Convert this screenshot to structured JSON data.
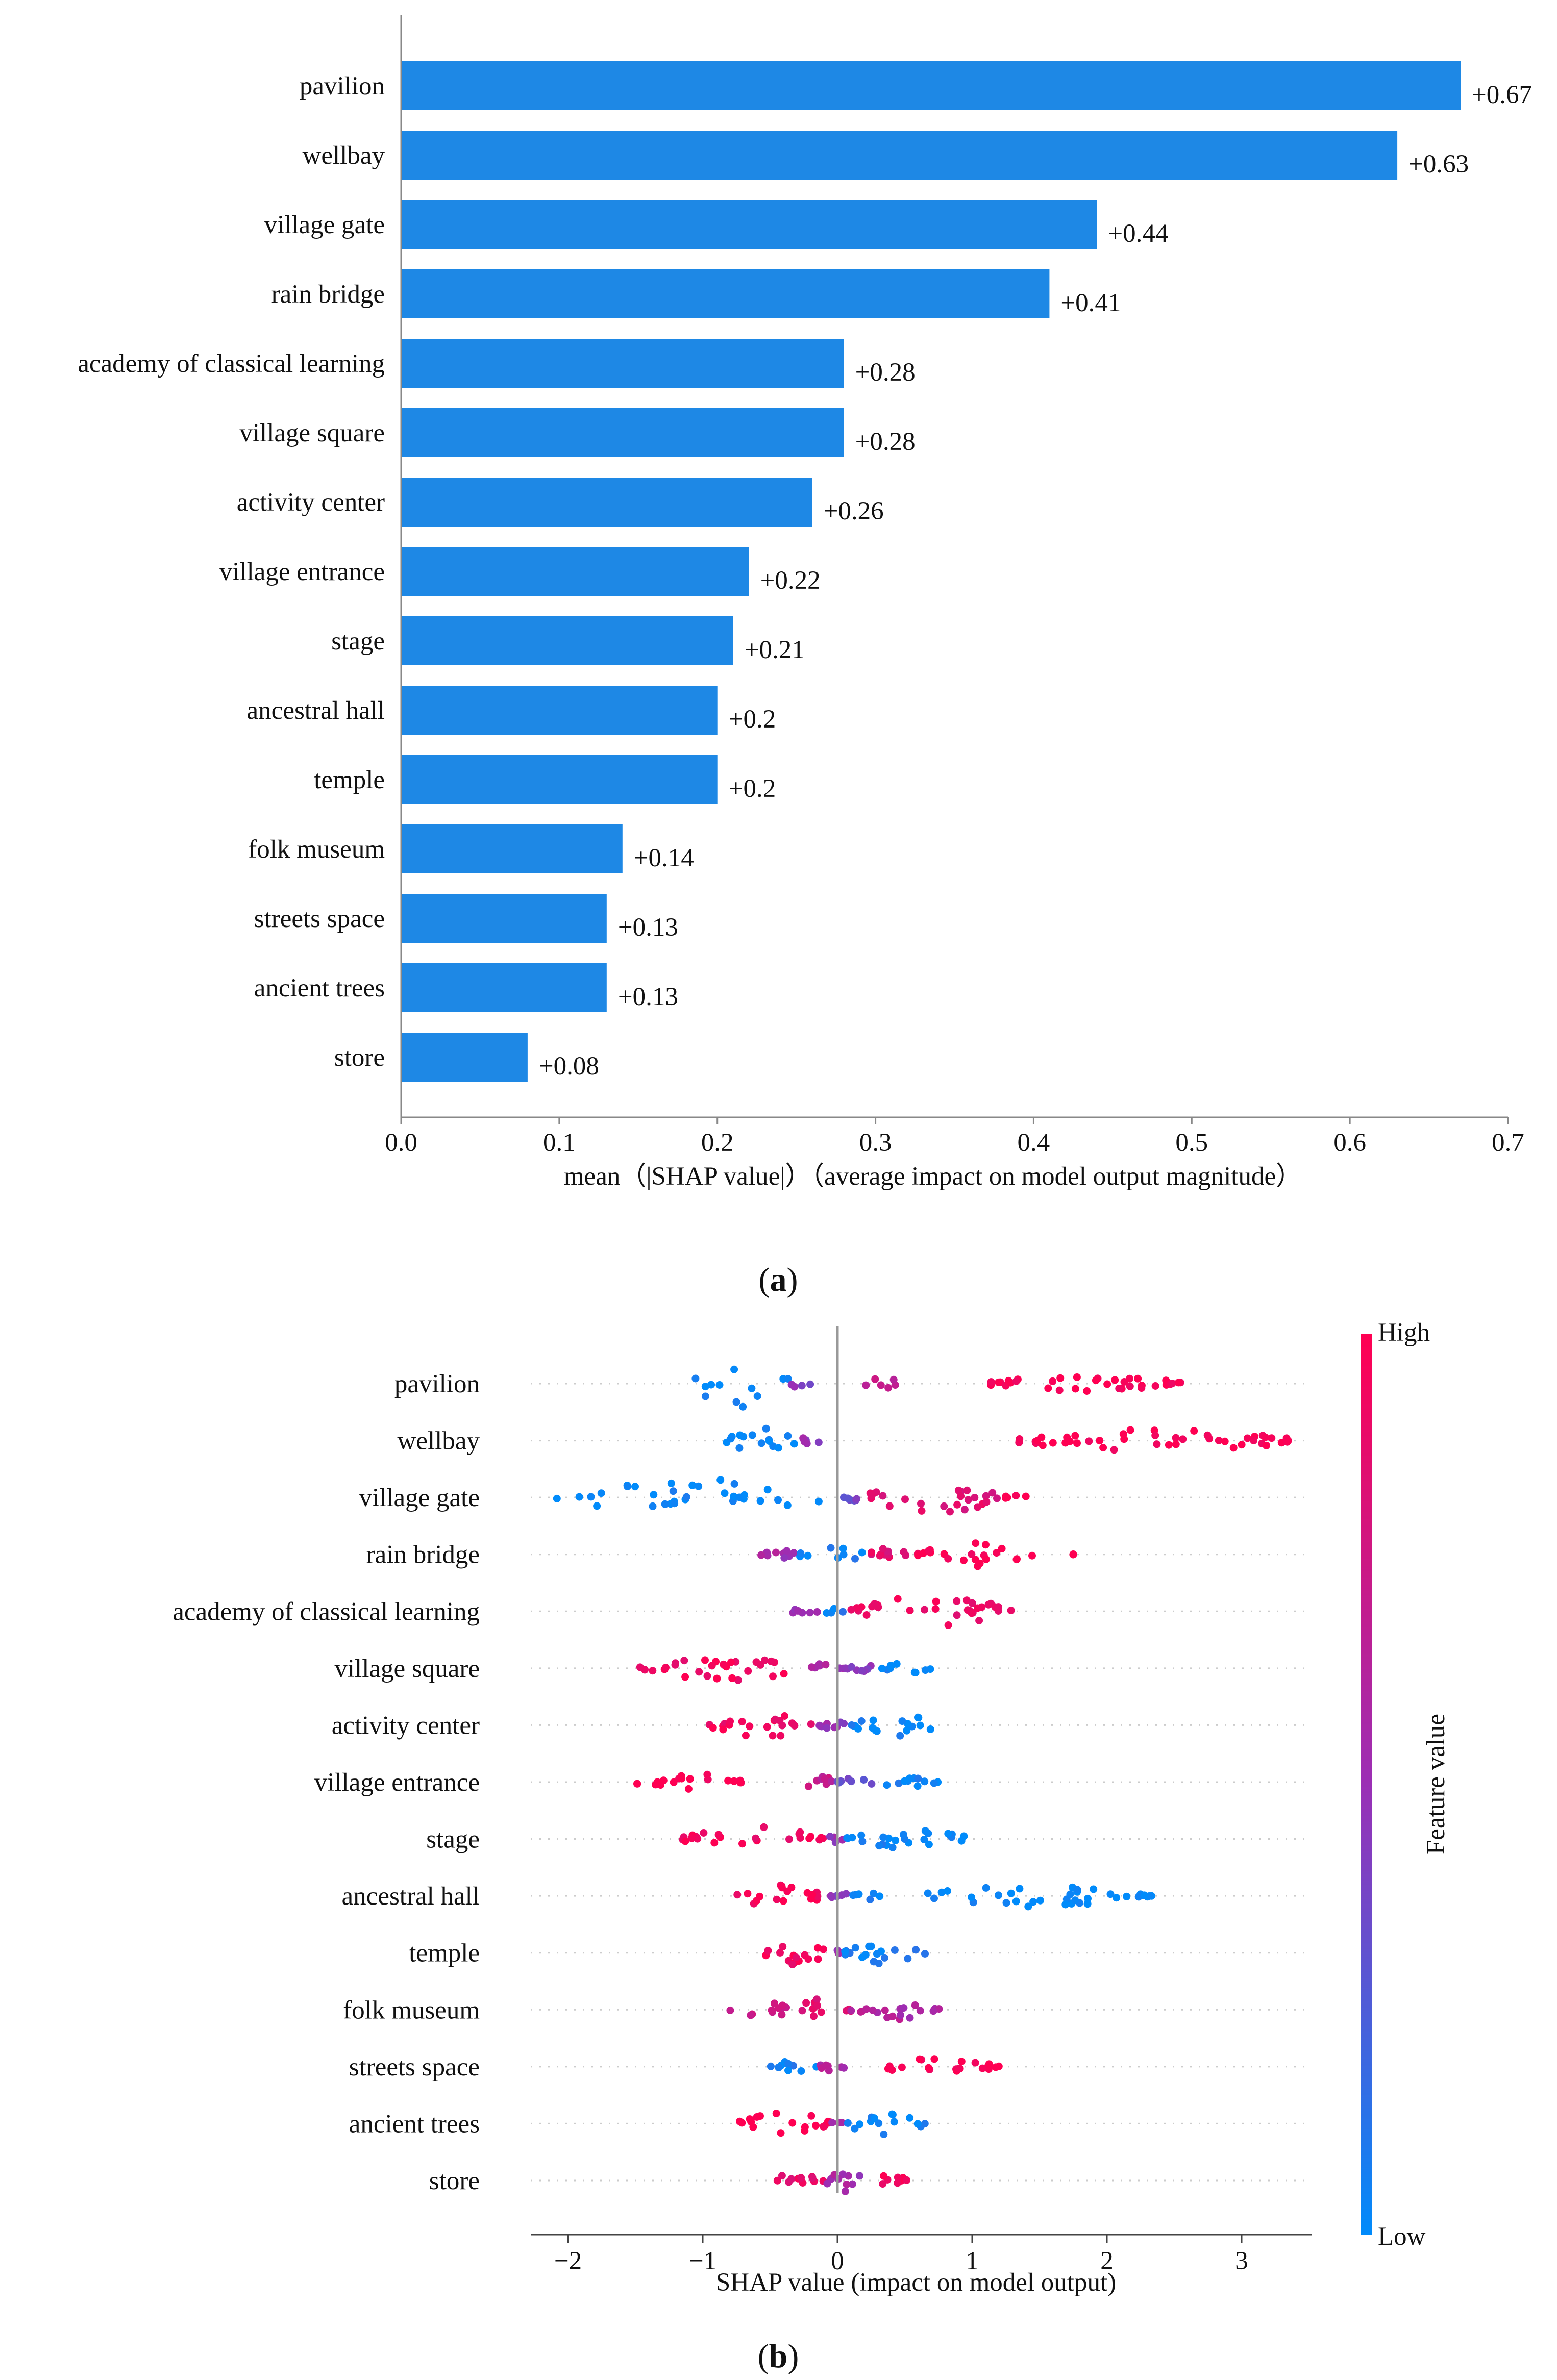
{
  "colors": {
    "bar": "#1e88e5",
    "low": "#008bfb",
    "mid": "#9b2fb5",
    "high": "#ff0052",
    "axis": "#888888",
    "text": "#111111"
  },
  "panel_a_label": "a",
  "panel_b_label": "b",
  "chart_data": [
    {
      "type": "bar",
      "orientation": "horizontal",
      "categories": [
        "pavilion",
        "wellbay",
        "village gate",
        "rain bridge",
        "academy of classical learning",
        "village square",
        "activity center",
        "village entrance",
        "stage",
        "ancestral hall",
        "temple",
        "folk museum",
        "streets space",
        "ancient trees",
        "store"
      ],
      "values": [
        0.67,
        0.63,
        0.44,
        0.41,
        0.28,
        0.28,
        0.26,
        0.22,
        0.21,
        0.2,
        0.2,
        0.14,
        0.13,
        0.13,
        0.08
      ],
      "value_labels": [
        "+0.67",
        "+0.63",
        "+0.44",
        "+0.41",
        "+0.28",
        "+0.28",
        "+0.26",
        "+0.22",
        "+0.21",
        "+0.2",
        "+0.2",
        "+0.14",
        "+0.13",
        "+0.13",
        "+0.08"
      ],
      "xlim": [
        0,
        0.7
      ],
      "xticks": [
        0.0,
        0.1,
        0.2,
        0.3,
        0.4,
        0.5,
        0.6,
        0.7
      ],
      "xtick_labels": [
        "0.0",
        "0.1",
        "0.2",
        "0.3",
        "0.4",
        "0.5",
        "0.6",
        "0.7"
      ],
      "xlabel": "mean（|SHAP value|）（average impact on model output magnitude）",
      "title": ""
    },
    {
      "type": "scatter",
      "subtype": "beeswarm",
      "categories": [
        "pavilion",
        "wellbay",
        "village gate",
        "rain bridge",
        "academy of classical learning",
        "village square",
        "activity center",
        "village entrance",
        "stage",
        "ancestral hall",
        "temple",
        "folk museum",
        "streets space",
        "ancient trees",
        "store"
      ],
      "xlim": [
        -2.4,
        3.75
      ],
      "xticks": [
        -2,
        -1,
        0,
        1,
        2,
        3
      ],
      "xtick_labels": [
        "−2",
        "−1",
        "0",
        "1",
        "2",
        "3"
      ],
      "xlabel": "SHAP value (impact on model output)",
      "colorbar": {
        "label": "Feature value",
        "high_label": "High",
        "low_label": "Low"
      },
      "clusters": [
        [
          [
            -1.1,
            -0.35,
            0.05,
            0.95,
            0.0
          ],
          [
            -0.35,
            -0.2,
            0.28,
            0.25,
            0.45
          ],
          [
            0.2,
            0.45,
            0.22,
            0.78,
            0.7
          ],
          [
            1.1,
            2.6,
            0.18,
            0.32,
            1.0
          ]
        ],
        [
          [
            -0.85,
            -0.3,
            0.25,
            0.55,
            0.0
          ],
          [
            -0.3,
            -0.12,
            0.3,
            0.2,
            0.5
          ],
          [
            1.2,
            3.45,
            0.14,
            0.45,
            1.0
          ]
        ],
        [
          [
            -2.1,
            -0.05,
            0.05,
            0.75,
            0.0
          ],
          [
            0.0,
            0.2,
            0.3,
            0.18,
            0.35
          ],
          [
            0.2,
            1.2,
            0.2,
            0.7,
            0.85
          ],
          [
            1.2,
            1.45,
            0.15,
            0.12,
            1.0
          ]
        ],
        [
          [
            -0.6,
            -0.3,
            0.3,
            0.2,
            0.55
          ],
          [
            -0.3,
            0.2,
            0.1,
            0.35,
            0.05
          ],
          [
            0.2,
            0.55,
            0.3,
            0.3,
            0.85
          ],
          [
            0.55,
            1.5,
            0.18,
            0.5,
            1.0
          ],
          [
            1.75,
            1.75,
            0.1,
            0.02,
            1.0
          ]
        ],
        [
          [
            -0.35,
            -0.15,
            0.3,
            0.2,
            0.5
          ],
          [
            -0.15,
            0.05,
            0.1,
            0.15,
            0.05
          ],
          [
            0.05,
            1.3,
            0.22,
            0.65,
            0.92
          ]
        ],
        [
          [
            -1.5,
            -0.25,
            0.18,
            0.55,
            0.95
          ],
          [
            -0.25,
            0.05,
            0.2,
            0.18,
            0.55
          ],
          [
            0.05,
            0.3,
            0.3,
            0.18,
            0.45
          ],
          [
            0.3,
            0.7,
            0.2,
            0.22,
            0.02
          ]
        ],
        [
          [
            -0.95,
            -0.15,
            0.22,
            0.5,
            0.95
          ],
          [
            -0.15,
            0.1,
            0.3,
            0.15,
            0.5
          ],
          [
            0.1,
            0.75,
            0.25,
            0.45,
            0.02
          ]
        ],
        [
          [
            -1.5,
            -0.7,
            0.18,
            0.35,
            1.0
          ],
          [
            -0.3,
            0.0,
            0.25,
            0.25,
            0.7
          ],
          [
            0.0,
            0.3,
            0.3,
            0.2,
            0.35
          ],
          [
            0.3,
            0.75,
            0.2,
            0.25,
            0.02
          ]
        ],
        [
          [
            -1.15,
            -0.1,
            0.18,
            0.5,
            0.95
          ],
          [
            -0.1,
            0.05,
            0.3,
            0.15,
            0.5
          ],
          [
            0.05,
            1.05,
            0.2,
            0.4,
            0.02
          ]
        ],
        [
          [
            -0.75,
            -0.1,
            0.25,
            0.5,
            0.98
          ],
          [
            -0.1,
            0.1,
            0.3,
            0.15,
            0.45
          ],
          [
            0.1,
            0.35,
            0.2,
            0.2,
            0.02
          ],
          [
            0.6,
            2.35,
            0.14,
            0.45,
            0.0
          ]
        ],
        [
          [
            -0.55,
            -0.05,
            0.3,
            0.5,
            0.95
          ],
          [
            -0.05,
            0.05,
            0.3,
            0.1,
            0.5
          ],
          [
            0.05,
            0.65,
            0.3,
            0.45,
            0.05
          ]
        ],
        [
          [
            -0.8,
            -0.3,
            0.15,
            0.3,
            0.7
          ],
          [
            -0.3,
            0.1,
            0.35,
            0.5,
            0.85
          ],
          [
            0.1,
            0.8,
            0.25,
            0.4,
            0.6
          ]
        ],
        [
          [
            -0.5,
            -0.15,
            0.25,
            0.25,
            0.05
          ],
          [
            -0.15,
            0.1,
            0.3,
            0.2,
            0.6
          ],
          [
            0.3,
            1.2,
            0.18,
            0.35,
            1.0
          ]
        ],
        [
          [
            -0.75,
            -0.05,
            0.25,
            0.5,
            0.98
          ],
          [
            -0.05,
            0.05,
            0.3,
            0.12,
            0.5
          ],
          [
            0.05,
            0.65,
            0.25,
            0.45,
            0.02
          ]
        ],
        [
          [
            -0.5,
            -0.1,
            0.25,
            0.3,
            0.9
          ],
          [
            -0.1,
            0.2,
            0.35,
            0.45,
            0.55
          ],
          [
            0.2,
            0.55,
            0.15,
            0.2,
            0.95
          ]
        ]
      ]
    }
  ]
}
